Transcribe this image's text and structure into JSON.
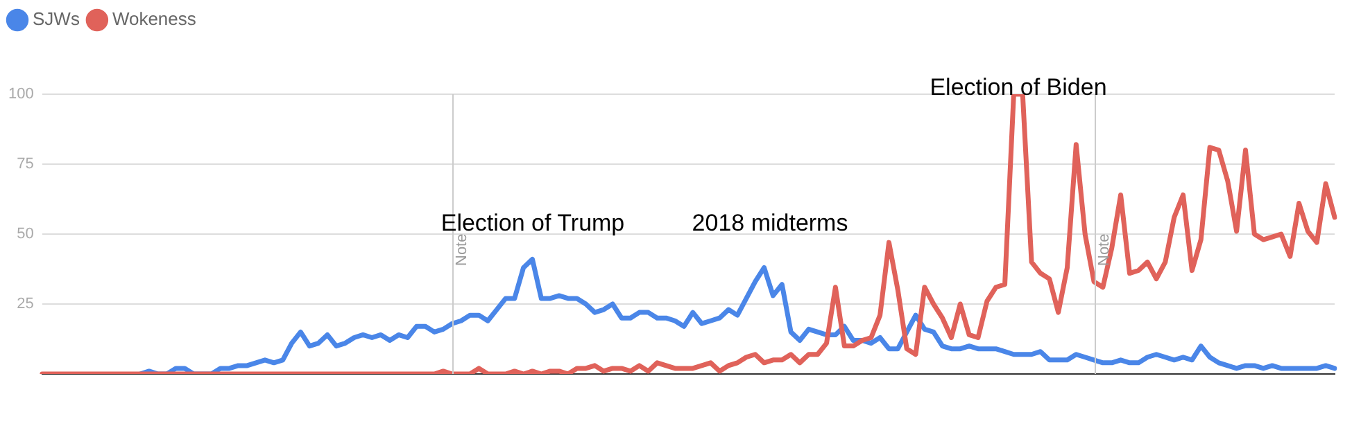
{
  "chart_data": {
    "type": "line",
    "categories": [
      null,
      null,
      null,
      null,
      null,
      null,
      null,
      null,
      null,
      null,
      null,
      null,
      null,
      null,
      null,
      null,
      null,
      null,
      null,
      null,
      null,
      null,
      null,
      null,
      null,
      null,
      null,
      null,
      null,
      null,
      null,
      null,
      null,
      null,
      null,
      null,
      null,
      null,
      null,
      null,
      null,
      null,
      null,
      null,
      null,
      null,
      null,
      null,
      null,
      null,
      null,
      null,
      null,
      null,
      null,
      null,
      null,
      null,
      null,
      null,
      null,
      null,
      null,
      null,
      null,
      null,
      null,
      null,
      null,
      null,
      null,
      null,
      null,
      null,
      null,
      null,
      null,
      null,
      null,
      null,
      null,
      null,
      null,
      null,
      null,
      null,
      null,
      null,
      null,
      null,
      null,
      null,
      null,
      null,
      null,
      null,
      null,
      null,
      null,
      null,
      null,
      null,
      null,
      null,
      null,
      null,
      null,
      null,
      null,
      null,
      null,
      null,
      null,
      null,
      null,
      null,
      null,
      null,
      null,
      null,
      null,
      null,
      null,
      null,
      null,
      null,
      null,
      null,
      null,
      null,
      null,
      null,
      null,
      null,
      null,
      null,
      null,
      null,
      null,
      null,
      null,
      null,
      null,
      null,
      null,
      null
    ],
    "ylim": [
      0,
      100
    ],
    "yticks": [
      25,
      50,
      75,
      100
    ],
    "tick_labels": "y",
    "grid": "y",
    "legend": "top left",
    "marker": "none",
    "series": [
      {
        "name": "SJWs",
        "color": "#4a86e8",
        "values": [
          null,
          null,
          null,
          null,
          null,
          null,
          null,
          null,
          null,
          null,
          null,
          0,
          1,
          0,
          0,
          2,
          2,
          0,
          0,
          0,
          2,
          2,
          3,
          3,
          4,
          5,
          4,
          5,
          11,
          15,
          10,
          11,
          14,
          10,
          11,
          13,
          14,
          13,
          14,
          12,
          14,
          13,
          17,
          17,
          15,
          16,
          18,
          19,
          21,
          21,
          19,
          23,
          27,
          27,
          38,
          41,
          27,
          27,
          28,
          27,
          27,
          25,
          22,
          23,
          25,
          20,
          20,
          22,
          22,
          20,
          20,
          19,
          17,
          22,
          18,
          19,
          20,
          23,
          21,
          27,
          33,
          38,
          28,
          32,
          15,
          12,
          16,
          15,
          14,
          14,
          17,
          12,
          12,
          11,
          13,
          9,
          9,
          15,
          21,
          16,
          15,
          10,
          9,
          9,
          10,
          9,
          9,
          9,
          8,
          7,
          7,
          7,
          8,
          5,
          5,
          5,
          7,
          6,
          5,
          4,
          4,
          5,
          4,
          4,
          6,
          7,
          6,
          5,
          6,
          5,
          10,
          6,
          4,
          3,
          2,
          3,
          3,
          2,
          3,
          2,
          2,
          2,
          2,
          2,
          3,
          2
        ]
      },
      {
        "name": "Wokeness",
        "color": "#e0625a",
        "values": [
          0,
          0,
          0,
          0,
          0,
          0,
          0,
          0,
          0,
          0,
          0,
          0,
          0,
          0,
          0,
          0,
          0,
          0,
          0,
          0,
          0,
          0,
          0,
          0,
          0,
          0,
          0,
          0,
          0,
          0,
          0,
          0,
          0,
          0,
          0,
          0,
          0,
          0,
          0,
          0,
          0,
          0,
          0,
          0,
          0,
          1,
          0,
          0,
          0,
          2,
          0,
          0,
          0,
          1,
          0,
          1,
          0,
          1,
          1,
          0,
          2,
          2,
          3,
          1,
          2,
          2,
          1,
          3,
          1,
          4,
          3,
          2,
          2,
          2,
          3,
          4,
          1,
          3,
          4,
          6,
          7,
          4,
          5,
          5,
          7,
          4,
          7,
          7,
          11,
          31,
          10,
          10,
          12,
          13,
          21,
          47,
          30,
          9,
          7,
          31,
          25,
          20,
          13,
          25,
          14,
          13,
          26,
          31,
          32,
          100,
          100,
          40,
          36,
          34,
          22,
          38,
          82,
          50,
          33,
          31,
          45,
          64,
          36,
          37,
          40,
          34,
          40,
          56,
          64,
          37,
          48,
          81,
          80,
          69,
          51,
          80,
          50,
          48,
          49,
          50,
          42,
          61,
          51,
          47,
          68,
          56
        ]
      }
    ],
    "annotations": [
      "Note",
      "Election of Trump",
      "2018 midterms",
      "Election of Biden",
      "Note"
    ]
  }
}
